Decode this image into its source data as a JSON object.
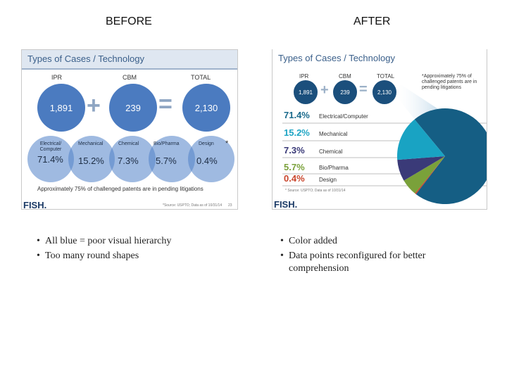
{
  "before": {
    "heading": "BEFORE",
    "slide": {
      "title": "Types of Cases / Technology",
      "top_labels": [
        "IPR",
        "CBM",
        "TOTAL"
      ],
      "top_values": [
        "1,891",
        "239",
        "2,130"
      ],
      "venn": [
        {
          "name": "Electrical/ Computer",
          "value": "71.4%"
        },
        {
          "name": "Mechanical",
          "value": "15.2%"
        },
        {
          "name": "Chemical",
          "value": "7.3%"
        },
        {
          "name": "Bio/Pharma",
          "value": "5.7%"
        },
        {
          "name": "Design",
          "value": "0.4%"
        }
      ],
      "asterisk": "*",
      "footnote": "Approximately 75% of challenged patents are in pending litigations",
      "source": "*Source: USPTO; Data as of 10/31/14",
      "page_number": "23",
      "logo": "FISH."
    },
    "bullets": [
      "All blue = poor visual hierarchy",
      "Too many round shapes"
    ]
  },
  "after": {
    "heading": "AFTER",
    "slide": {
      "title": "Types of Cases / Technology",
      "top_labels": [
        "IPR",
        "CBM",
        "TOTAL"
      ],
      "top_values": [
        "1,891",
        "239",
        "2,130"
      ],
      "note": "*Approximately 75% of challenged patents are in pending litigations",
      "rows": [
        {
          "pct": "71.4%",
          "name": "Electrical/Computer",
          "color": "#1a6a8c"
        },
        {
          "pct": "15.2%",
          "name": "Mechanical",
          "color": "#1ea5c4"
        },
        {
          "pct": "7.3%",
          "name": "Chemical",
          "color": "#3a3a78"
        },
        {
          "pct": "5.7%",
          "name": "Bio/Pharma",
          "color": "#7aa13a"
        },
        {
          "pct": "0.4%",
          "name": "Design",
          "color": "#c9452c"
        }
      ],
      "source": "* Source: USPTO; Data as of 10/31/14",
      "logo": "FISH."
    },
    "bullets": [
      "Color added",
      "Data points reconfigured for better comprehension"
    ]
  },
  "colors": {
    "circle_blue": "#4b7bc0",
    "venn_blue": "#6e9bd6",
    "pie_electrical": "#155e84",
    "pie_mechanical": "#19a3c3",
    "pie_chemical": "#3a3a78",
    "pie_bio": "#7aa13a",
    "pie_design": "#c9452c"
  },
  "chart_data": {
    "type": "pie",
    "categories": [
      "Electrical/Computer",
      "Mechanical",
      "Chemical",
      "Bio/Pharma",
      "Design"
    ],
    "values": [
      71.4,
      15.2,
      7.3,
      5.7,
      0.4
    ],
    "title": ""
  }
}
